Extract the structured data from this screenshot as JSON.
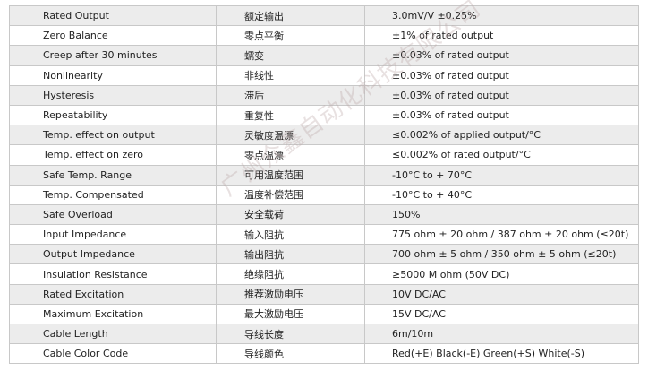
{
  "table": {
    "rows": [
      [
        "Rated Output",
        "额定输出",
        "3.0mV/V ±0.25%"
      ],
      [
        "Zero Balance",
        "零点平衡",
        "±1% of rated output"
      ],
      [
        "Creep after 30 minutes",
        "蠕变",
        "±0.03% of rated output"
      ],
      [
        "Nonlinearity",
        "非线性",
        "±0.03% of rated output"
      ],
      [
        "Hysteresis",
        "滞后",
        "±0.03% of rated output"
      ],
      [
        "Repeatability",
        "重复性",
        "±0.03% of rated output"
      ],
      [
        "Temp. effect on output",
        "灵敏度温漂",
        "≤0.002% of applied output/°C"
      ],
      [
        "Temp. effect on zero",
        "零点温漂",
        "≤0.002% of rated output/°C"
      ],
      [
        "Safe Temp. Range",
        "可用温度范围",
        "-10°C to + 70°C"
      ],
      [
        "Temp. Compensated",
        "温度补偿范围",
        "-10°C to + 40°C"
      ],
      [
        "Safe Overload",
        "安全载荷",
        "150%"
      ],
      [
        "Input Impedance",
        "输入阻抗",
        "775 ohm ± 20 ohm / 387 ohm ± 20 ohm (≤20t)"
      ],
      [
        "Output Impedance",
        "输出阻抗",
        "700 ohm ± 5 ohm / 350 ohm ± 5 ohm (≤20t)"
      ],
      [
        "Insulation Resistance",
        "绝缘阻抗",
        "≥5000 M ohm (50V DC)"
      ],
      [
        "Rated Excitation",
        "推荐激励电压",
        "10V DC/AC"
      ],
      [
        "Maximum Excitation",
        "最大激励电压",
        "15V DC/AC"
      ],
      [
        "Cable Length",
        "导线长度",
        "6m/10m"
      ],
      [
        "Cable Color Code",
        "导线颜色",
        "Red(+E) Black(-E) Green(+S) White(-S)"
      ]
    ]
  },
  "watermark": "广州众鑫自动化科技有限公司"
}
